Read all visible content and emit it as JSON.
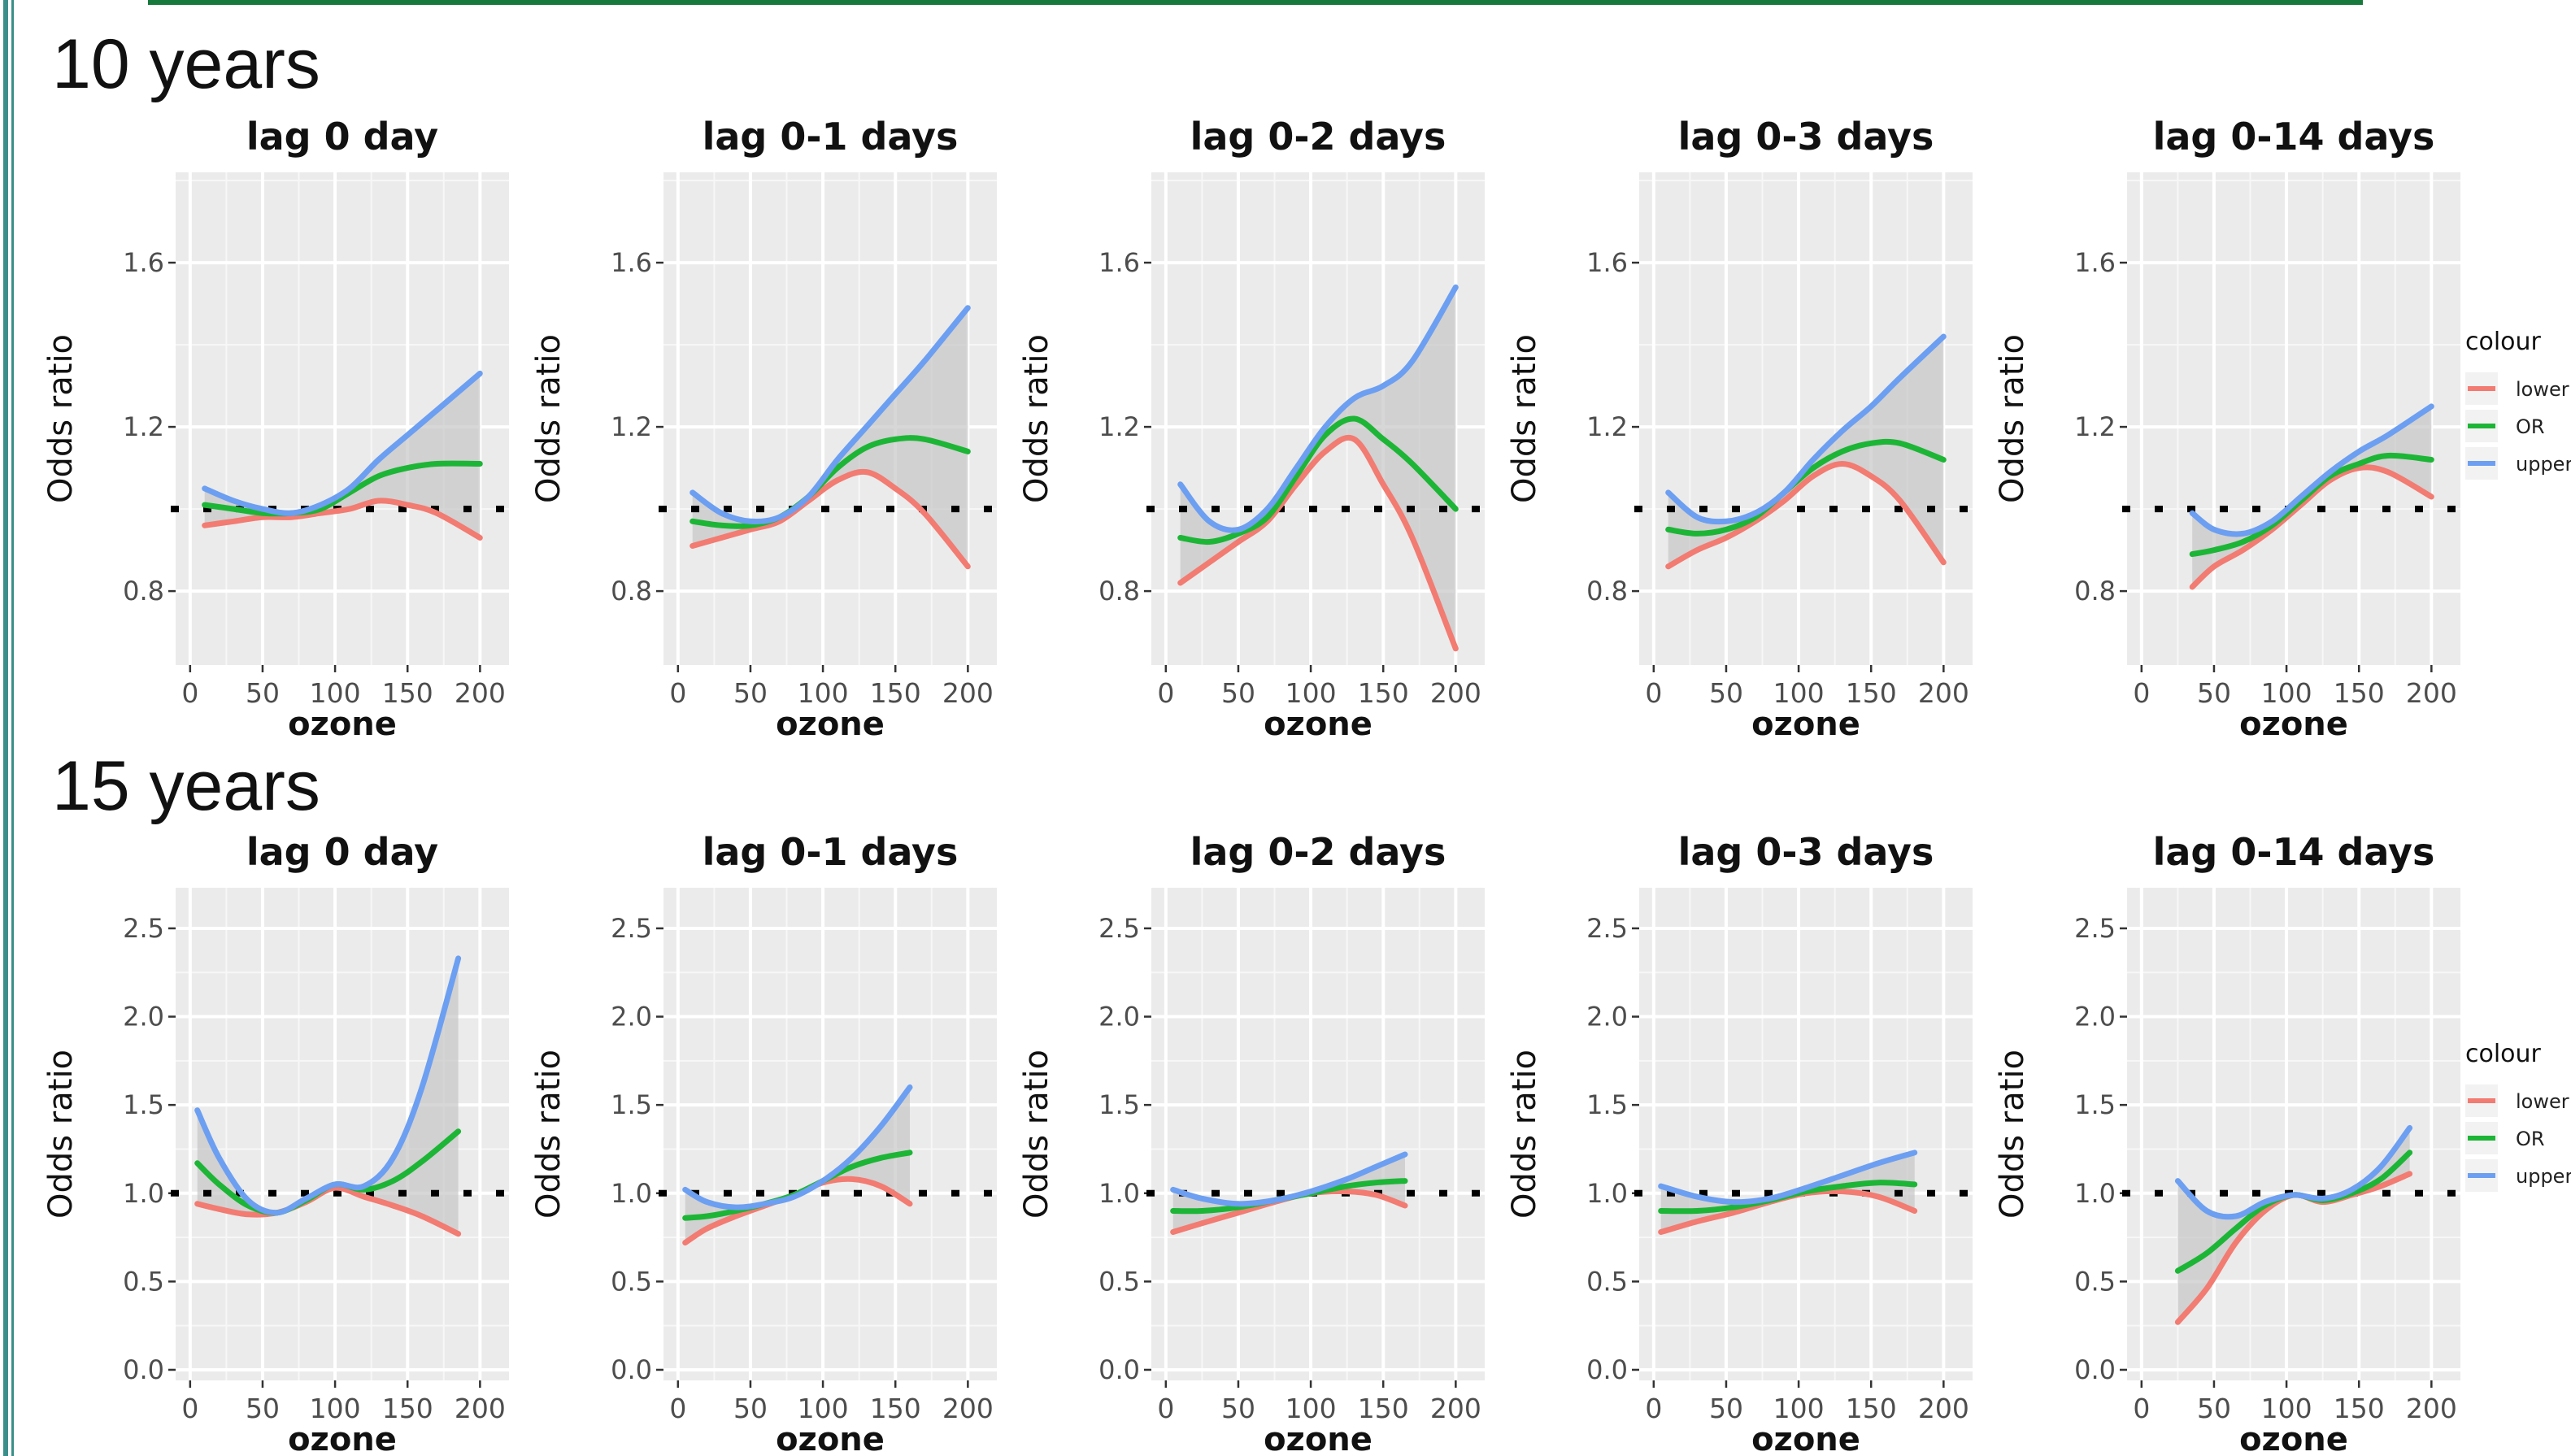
{
  "sections": [
    {
      "label": "10 years"
    },
    {
      "label": "15 years"
    }
  ],
  "colors": {
    "lower": "#f27b72",
    "or": "#1db536",
    "upper": "#6c9ff1",
    "panel_bg": "#ebebeb",
    "ribbon": "#c6c6c6"
  },
  "legend": {
    "title": "colour",
    "entries": [
      {
        "key": "lower",
        "label": "lower C"
      },
      {
        "key": "or",
        "label": "OR"
      },
      {
        "key": "upper",
        "label": "upper"
      }
    ]
  },
  "chart_data": [
    {
      "type": "line",
      "title": "lag 0 day",
      "xlabel": "ozone",
      "ylabel": "Odds ratio",
      "xlim": [
        -10,
        220
      ],
      "ylim": [
        0.62,
        1.82
      ],
      "xticks": [
        0,
        50,
        100,
        150,
        200
      ],
      "yticks": [
        0.8,
        1.2,
        1.6
      ],
      "reference_y": 1.0,
      "series": [
        {
          "key": "upper",
          "x": [
            10,
            30,
            50,
            70,
            90,
            110,
            130,
            150,
            170,
            200
          ],
          "y": [
            1.05,
            1.02,
            1.0,
            0.99,
            1.01,
            1.05,
            1.12,
            1.18,
            1.24,
            1.33
          ]
        },
        {
          "key": "or",
          "x": [
            10,
            30,
            50,
            70,
            90,
            110,
            130,
            150,
            170,
            200
          ],
          "y": [
            1.01,
            1.0,
            0.99,
            0.99,
            1.0,
            1.04,
            1.08,
            1.1,
            1.11,
            1.11
          ]
        },
        {
          "key": "lower",
          "x": [
            10,
            30,
            50,
            70,
            90,
            110,
            130,
            150,
            170,
            200
          ],
          "y": [
            0.96,
            0.97,
            0.98,
            0.98,
            0.99,
            1.0,
            1.02,
            1.01,
            0.99,
            0.93
          ]
        }
      ]
    },
    {
      "type": "line",
      "title": "lag 0-1 days",
      "xlabel": "ozone",
      "ylabel": "Odds ratio",
      "xlim": [
        -10,
        220
      ],
      "ylim": [
        0.62,
        1.82
      ],
      "xticks": [
        0,
        50,
        100,
        150,
        200
      ],
      "yticks": [
        0.8,
        1.2,
        1.6
      ],
      "reference_y": 1.0,
      "series": [
        {
          "key": "upper",
          "x": [
            10,
            30,
            50,
            70,
            90,
            110,
            130,
            150,
            170,
            200
          ],
          "y": [
            1.04,
            0.99,
            0.97,
            0.98,
            1.03,
            1.12,
            1.2,
            1.28,
            1.36,
            1.49
          ]
        },
        {
          "key": "or",
          "x": [
            10,
            30,
            50,
            70,
            90,
            110,
            130,
            150,
            170,
            200
          ],
          "y": [
            0.97,
            0.96,
            0.96,
            0.98,
            1.03,
            1.1,
            1.15,
            1.17,
            1.17,
            1.14
          ]
        },
        {
          "key": "lower",
          "x": [
            10,
            30,
            50,
            70,
            90,
            110,
            130,
            150,
            170,
            200
          ],
          "y": [
            0.91,
            0.93,
            0.95,
            0.97,
            1.02,
            1.07,
            1.09,
            1.05,
            0.99,
            0.86
          ]
        }
      ]
    },
    {
      "type": "line",
      "title": "lag 0-2 days",
      "xlabel": "ozone",
      "ylabel": "Odds ratio",
      "xlim": [
        -10,
        220
      ],
      "ylim": [
        0.62,
        1.82
      ],
      "xticks": [
        0,
        50,
        100,
        150,
        200
      ],
      "yticks": [
        0.8,
        1.2,
        1.6
      ],
      "reference_y": 1.0,
      "series": [
        {
          "key": "upper",
          "x": [
            10,
            30,
            50,
            70,
            90,
            110,
            130,
            150,
            170,
            200
          ],
          "y": [
            1.06,
            0.97,
            0.95,
            1.0,
            1.1,
            1.2,
            1.27,
            1.3,
            1.36,
            1.54
          ]
        },
        {
          "key": "or",
          "x": [
            10,
            30,
            50,
            70,
            90,
            110,
            130,
            150,
            170,
            200
          ],
          "y": [
            0.93,
            0.92,
            0.94,
            0.98,
            1.08,
            1.18,
            1.22,
            1.17,
            1.11,
            1.0
          ]
        },
        {
          "key": "lower",
          "x": [
            10,
            30,
            50,
            70,
            90,
            110,
            130,
            150,
            170,
            200
          ],
          "y": [
            0.82,
            0.87,
            0.92,
            0.97,
            1.06,
            1.14,
            1.17,
            1.06,
            0.93,
            0.66
          ]
        }
      ]
    },
    {
      "type": "line",
      "title": "lag 0-3 days",
      "xlabel": "ozone",
      "ylabel": "Odds ratio",
      "xlim": [
        -10,
        220
      ],
      "ylim": [
        0.62,
        1.82
      ],
      "xticks": [
        0,
        50,
        100,
        150,
        200
      ],
      "yticks": [
        0.8,
        1.2,
        1.6
      ],
      "reference_y": 1.0,
      "series": [
        {
          "key": "upper",
          "x": [
            10,
            30,
            50,
            70,
            90,
            110,
            130,
            150,
            170,
            200
          ],
          "y": [
            1.04,
            0.98,
            0.97,
            0.99,
            1.04,
            1.12,
            1.19,
            1.25,
            1.32,
            1.42
          ]
        },
        {
          "key": "or",
          "x": [
            10,
            30,
            50,
            70,
            90,
            110,
            130,
            150,
            170,
            200
          ],
          "y": [
            0.95,
            0.94,
            0.95,
            0.98,
            1.04,
            1.1,
            1.14,
            1.16,
            1.16,
            1.12
          ]
        },
        {
          "key": "lower",
          "x": [
            10,
            30,
            50,
            70,
            90,
            110,
            130,
            150,
            170,
            200
          ],
          "y": [
            0.86,
            0.9,
            0.93,
            0.97,
            1.02,
            1.08,
            1.11,
            1.08,
            1.02,
            0.87
          ]
        }
      ]
    },
    {
      "type": "line",
      "title": "lag 0-14 days",
      "xlabel": "ozone",
      "ylabel": "Odds ratio",
      "xlim": [
        -10,
        220
      ],
      "ylim": [
        0.62,
        1.82
      ],
      "xticks": [
        0,
        50,
        100,
        150,
        200
      ],
      "yticks": [
        0.8,
        1.2,
        1.6
      ],
      "reference_y": 1.0,
      "series": [
        {
          "key": "upper",
          "x": [
            35,
            50,
            70,
            90,
            110,
            130,
            150,
            170,
            200
          ],
          "y": [
            0.99,
            0.95,
            0.94,
            0.97,
            1.03,
            1.09,
            1.14,
            1.18,
            1.25
          ]
        },
        {
          "key": "or",
          "x": [
            35,
            50,
            70,
            90,
            110,
            130,
            150,
            170,
            200
          ],
          "y": [
            0.89,
            0.9,
            0.92,
            0.96,
            1.02,
            1.08,
            1.11,
            1.13,
            1.12
          ]
        },
        {
          "key": "lower",
          "x": [
            35,
            50,
            70,
            90,
            110,
            130,
            150,
            170,
            200
          ],
          "y": [
            0.81,
            0.86,
            0.9,
            0.95,
            1.01,
            1.07,
            1.1,
            1.09,
            1.03
          ]
        }
      ]
    },
    {
      "type": "line",
      "title": "lag 0 day",
      "xlabel": "ozone",
      "ylabel": "Odds ratio",
      "xlim": [
        -10,
        220
      ],
      "ylim": [
        -0.06,
        2.73
      ],
      "xticks": [
        0,
        50,
        100,
        150,
        200
      ],
      "yticks": [
        0.0,
        0.5,
        1.0,
        1.5,
        2.0,
        2.5
      ],
      "reference_y": 1.0,
      "series": [
        {
          "key": "upper",
          "x": [
            5,
            20,
            40,
            60,
            80,
            100,
            120,
            140,
            160,
            185
          ],
          "y": [
            1.47,
            1.2,
            0.96,
            0.89,
            0.97,
            1.05,
            1.04,
            1.2,
            1.6,
            2.33
          ]
        },
        {
          "key": "or",
          "x": [
            5,
            20,
            40,
            60,
            80,
            100,
            120,
            140,
            160,
            185
          ],
          "y": [
            1.17,
            1.05,
            0.93,
            0.89,
            0.96,
            1.05,
            1.02,
            1.07,
            1.18,
            1.35
          ]
        },
        {
          "key": "lower",
          "x": [
            5,
            20,
            40,
            60,
            80,
            100,
            120,
            140,
            160,
            185
          ],
          "y": [
            0.94,
            0.91,
            0.88,
            0.89,
            0.95,
            1.03,
            0.98,
            0.93,
            0.87,
            0.77
          ]
        }
      ]
    },
    {
      "type": "line",
      "title": "lag 0-1 days",
      "xlabel": "ozone",
      "ylabel": "Odds ratio",
      "xlim": [
        -10,
        220
      ],
      "ylim": [
        -0.06,
        2.73
      ],
      "xticks": [
        0,
        50,
        100,
        150,
        200
      ],
      "yticks": [
        0.0,
        0.5,
        1.0,
        1.5,
        2.0,
        2.5
      ],
      "reference_y": 1.0,
      "series": [
        {
          "key": "upper",
          "x": [
            5,
            20,
            40,
            60,
            80,
            100,
            120,
            140,
            160
          ],
          "y": [
            1.02,
            0.95,
            0.92,
            0.94,
            0.98,
            1.07,
            1.2,
            1.38,
            1.6
          ]
        },
        {
          "key": "or",
          "x": [
            5,
            20,
            40,
            60,
            80,
            100,
            120,
            140,
            160
          ],
          "y": [
            0.86,
            0.87,
            0.9,
            0.94,
            0.99,
            1.07,
            1.15,
            1.2,
            1.23
          ]
        },
        {
          "key": "lower",
          "x": [
            5,
            20,
            40,
            60,
            80,
            100,
            120,
            140,
            160
          ],
          "y": [
            0.72,
            0.8,
            0.87,
            0.93,
            0.99,
            1.06,
            1.08,
            1.04,
            0.94
          ]
        }
      ]
    },
    {
      "type": "line",
      "title": "lag 0-2 days",
      "xlabel": "ozone",
      "ylabel": "Odds ratio",
      "xlim": [
        -10,
        220
      ],
      "ylim": [
        -0.06,
        2.73
      ],
      "xticks": [
        0,
        50,
        100,
        150,
        200
      ],
      "yticks": [
        0.0,
        0.5,
        1.0,
        1.5,
        2.0,
        2.5
      ],
      "reference_y": 1.0,
      "series": [
        {
          "key": "upper",
          "x": [
            5,
            25,
            50,
            75,
            100,
            125,
            145,
            165
          ],
          "y": [
            1.02,
            0.97,
            0.94,
            0.96,
            1.01,
            1.08,
            1.15,
            1.22
          ]
        },
        {
          "key": "or",
          "x": [
            5,
            25,
            50,
            75,
            100,
            125,
            145,
            165
          ],
          "y": [
            0.9,
            0.9,
            0.92,
            0.96,
            1.0,
            1.04,
            1.06,
            1.07
          ]
        },
        {
          "key": "lower",
          "x": [
            5,
            25,
            50,
            75,
            100,
            125,
            145,
            165
          ],
          "y": [
            0.78,
            0.83,
            0.89,
            0.95,
            1.0,
            1.01,
            0.99,
            0.93
          ]
        }
      ]
    },
    {
      "type": "line",
      "title": "lag 0-3 days",
      "xlabel": "ozone",
      "ylabel": "Odds ratio",
      "xlim": [
        -10,
        220
      ],
      "ylim": [
        -0.06,
        2.73
      ],
      "xticks": [
        0,
        50,
        100,
        150,
        200
      ],
      "yticks": [
        0.0,
        0.5,
        1.0,
        1.5,
        2.0,
        2.5
      ],
      "reference_y": 1.0,
      "series": [
        {
          "key": "upper",
          "x": [
            5,
            30,
            55,
            80,
            105,
            130,
            155,
            180
          ],
          "y": [
            1.04,
            0.98,
            0.95,
            0.97,
            1.03,
            1.1,
            1.17,
            1.23
          ]
        },
        {
          "key": "or",
          "x": [
            5,
            30,
            55,
            80,
            105,
            130,
            155,
            180
          ],
          "y": [
            0.9,
            0.9,
            0.92,
            0.96,
            1.01,
            1.04,
            1.06,
            1.05
          ]
        },
        {
          "key": "lower",
          "x": [
            5,
            30,
            55,
            80,
            105,
            130,
            155,
            180
          ],
          "y": [
            0.78,
            0.84,
            0.89,
            0.95,
            1.0,
            1.01,
            0.98,
            0.9
          ]
        }
      ]
    },
    {
      "type": "line",
      "title": "lag 0-14 days",
      "xlabel": "ozone",
      "ylabel": "Odds ratio",
      "xlim": [
        -10,
        220
      ],
      "ylim": [
        -0.06,
        2.73
      ],
      "xticks": [
        0,
        50,
        100,
        150,
        200
      ],
      "yticks": [
        0.0,
        0.5,
        1.0,
        1.5,
        2.0,
        2.5
      ],
      "reference_y": 1.0,
      "series": [
        {
          "key": "upper",
          "x": [
            25,
            45,
            65,
            85,
            105,
            125,
            145,
            165,
            185
          ],
          "y": [
            1.07,
            0.9,
            0.87,
            0.95,
            0.99,
            0.97,
            1.02,
            1.15,
            1.37
          ]
        },
        {
          "key": "or",
          "x": [
            25,
            45,
            65,
            85,
            105,
            125,
            145,
            165,
            185
          ],
          "y": [
            0.56,
            0.66,
            0.8,
            0.93,
            0.99,
            0.96,
            1.0,
            1.08,
            1.23
          ]
        },
        {
          "key": "lower",
          "x": [
            25,
            45,
            65,
            85,
            105,
            125,
            145,
            165,
            185
          ],
          "y": [
            0.27,
            0.46,
            0.72,
            0.9,
            0.99,
            0.95,
            0.99,
            1.04,
            1.11
          ]
        }
      ]
    }
  ]
}
